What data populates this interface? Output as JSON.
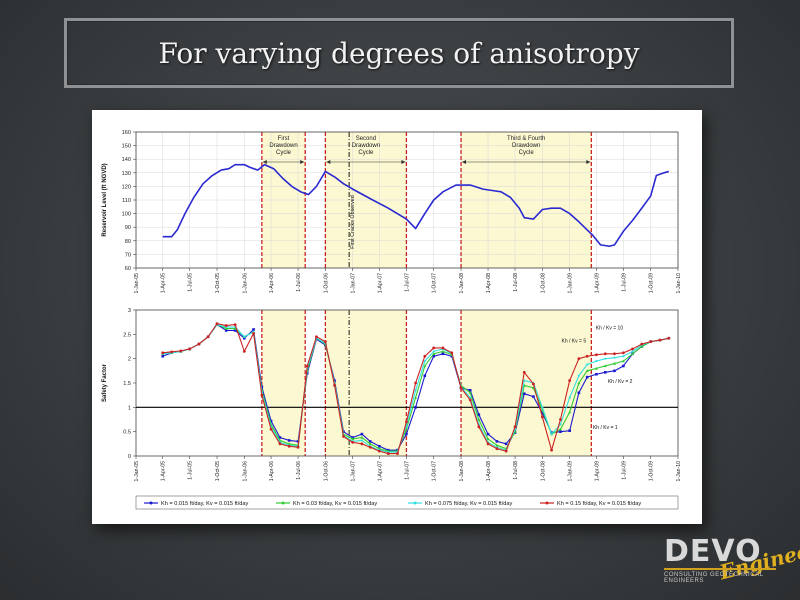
{
  "slide": {
    "title": "For varying degrees of anisotropy"
  },
  "logo": {
    "main": "DEVO",
    "script": "Engineering",
    "subtitle": "CONSULTING GEOTECHNICAL ENGINEERS"
  },
  "colors": {
    "reservoir_line": "#2a2ad0",
    "highlight": "#fbf8d2",
    "dashed_red": "#cc2222",
    "black_ref": "#000000"
  },
  "chart_data": [
    {
      "type": "line",
      "ylabel": "Reservoir Level (ft NGVD)",
      "xlim": [
        "2005-01-01",
        "2010-01-01"
      ],
      "ylim": [
        60,
        160
      ],
      "yticks": [
        60,
        70,
        80,
        90,
        100,
        110,
        120,
        130,
        140,
        150,
        160
      ],
      "xticks": [
        "1-Jan-05",
        "1-Apr-05",
        "1-Jul-05",
        "1-Oct-05",
        "1-Jan-06",
        "1-Apr-06",
        "1-Jul-06",
        "1-Oct-06",
        "1-Jan-07",
        "1-Apr-07",
        "1-Jul-07",
        "1-Oct-07",
        "1-Jan-08",
        "1-Apr-08",
        "1-Jul-08",
        "1-Oct-08",
        "1-Jan-09",
        "1-Apr-09",
        "1-Jul-09",
        "1-Oct-09",
        "1-Jan-10"
      ],
      "grid": true,
      "shaded_periods": [
        {
          "label": "First Drawdown Cycle",
          "start": "2006-03-01",
          "end": "2006-07-25"
        },
        {
          "label": "Second Drawdown Cycle",
          "start": "2006-10-01",
          "end": "2007-07-01"
        },
        {
          "label": "Third & Fourth Drawdown Cycle",
          "start": "2008-01-01",
          "end": "2009-03-15"
        }
      ],
      "vertical_annotation": {
        "label": "First Cracks Observed",
        "date": "2006-12-20"
      },
      "series": [
        {
          "x": [
            "2005-04-01",
            "2005-05-01",
            "2005-05-20",
            "2005-06-15",
            "2005-07-15",
            "2005-08-15",
            "2005-09-15",
            "2005-10-15",
            "2005-11-10",
            "2005-12-01",
            "2006-01-01",
            "2006-01-20",
            "2006-02-15",
            "2006-03-10",
            "2006-04-10",
            "2006-05-10",
            "2006-06-10",
            "2006-07-10",
            "2006-08-05",
            "2006-09-01",
            "2006-10-01",
            "2006-11-01",
            "2006-12-01",
            "2007-01-01",
            "2007-03-01",
            "2007-05-01",
            "2007-07-01",
            "2007-08-01",
            "2007-09-01",
            "2007-10-01",
            "2007-11-01",
            "2007-12-15",
            "2008-02-01",
            "2008-03-15",
            "2008-04-15",
            "2008-05-15",
            "2008-06-15",
            "2008-07-15",
            "2008-08-01",
            "2008-09-01",
            "2008-10-01",
            "2008-11-01",
            "2008-12-01",
            "2009-01-01",
            "2009-02-01",
            "2009-03-01",
            "2009-03-20",
            "2009-04-15",
            "2009-05-15",
            "2009-06-01",
            "2009-07-01",
            "2009-08-01",
            "2009-09-01",
            "2009-10-01",
            "2009-10-20",
            "2009-11-15",
            "2009-12-01"
          ],
          "y": [
            83,
            83,
            88,
            100,
            112,
            122,
            128,
            132,
            133,
            136,
            136,
            134,
            132,
            136,
            133,
            126,
            120,
            116,
            114,
            120,
            131,
            127,
            122,
            118,
            111,
            104,
            96,
            89,
            100,
            110,
            116,
            121,
            121,
            118,
            117,
            116,
            112,
            104,
            97,
            96,
            103,
            104,
            104,
            100,
            94,
            88,
            84,
            77,
            76,
            77,
            87,
            95,
            104,
            113,
            128,
            130,
            131
          ]
        }
      ]
    },
    {
      "type": "line",
      "ylabel": "Safety Factor",
      "xlim": [
        "2005-01-01",
        "2010-01-01"
      ],
      "ylim": [
        0,
        3
      ],
      "yticks": [
        0,
        0.5,
        1,
        1.5,
        2,
        2.5,
        3
      ],
      "xticks": [
        "1-Jan-05",
        "1-Apr-05",
        "1-Jul-05",
        "1-Oct-05",
        "1-Jan-06",
        "1-Apr-06",
        "1-Jul-06",
        "1-Oct-06",
        "1-Jan-07",
        "1-Apr-07",
        "1-Jul-07",
        "1-Oct-07",
        "1-Jan-08",
        "1-Apr-08",
        "1-Jul-08",
        "1-Oct-08",
        "1-Jan-09",
        "1-Apr-09",
        "1-Jul-09",
        "1-Oct-09",
        "1-Jan-10"
      ],
      "grid": false,
      "reference_line": 1,
      "legend_position": "bottom",
      "annotations": [
        {
          "text": "Kh / Kv = 10",
          "x": "2009-05-15",
          "y": 2.6
        },
        {
          "text": "Kh / Kv = 5",
          "x": "2009-01-15",
          "y": 2.33
        },
        {
          "text": "Kh / Kv = 2",
          "x": "2009-06-20",
          "y": 1.5
        },
        {
          "text": "Kh / Kv = 1",
          "x": "2009-05-01",
          "y": 0.55
        }
      ],
      "x": [
        "2005-04-01",
        "2005-05-01",
        "2005-06-01",
        "2005-07-01",
        "2005-08-01",
        "2005-09-01",
        "2005-10-01",
        "2005-11-01",
        "2005-12-01",
        "2006-01-01",
        "2006-02-01",
        "2006-03-01",
        "2006-04-01",
        "2006-05-01",
        "2006-06-01",
        "2006-07-01",
        "2006-08-01",
        "2006-09-01",
        "2006-10-01",
        "2006-11-01",
        "2006-12-01",
        "2007-01-01",
        "2007-02-01",
        "2007-03-01",
        "2007-04-01",
        "2007-05-01",
        "2007-06-01",
        "2007-07-01",
        "2007-08-01",
        "2007-09-01",
        "2007-10-01",
        "2007-11-01",
        "2007-12-01",
        "2008-01-01",
        "2008-02-01",
        "2008-03-01",
        "2008-04-01",
        "2008-05-01",
        "2008-06-01",
        "2008-07-01",
        "2008-08-01",
        "2008-09-01",
        "2008-10-01",
        "2008-11-01",
        "2008-12-01",
        "2009-01-01",
        "2009-02-01",
        "2009-03-01",
        "2009-04-01",
        "2009-05-01",
        "2009-06-01",
        "2009-07-01",
        "2009-08-01",
        "2009-09-01",
        "2009-10-01",
        "2009-11-01",
        "2009-12-01"
      ],
      "series": [
        {
          "name": "Kh = 0.015 ft/day, Kv = 0.015 ft/day",
          "color": "#1a1ad0",
          "y": [
            2.05,
            2.12,
            2.15,
            2.2,
            2.3,
            2.45,
            2.7,
            2.58,
            2.58,
            2.42,
            2.6,
            1.42,
            0.72,
            0.38,
            0.32,
            0.3,
            1.7,
            2.4,
            2.28,
            1.55,
            0.5,
            0.38,
            0.45,
            0.3,
            0.2,
            0.12,
            0.12,
            0.45,
            1.0,
            1.65,
            2.05,
            2.1,
            2.05,
            1.4,
            1.35,
            0.85,
            0.45,
            0.3,
            0.25,
            0.48,
            1.28,
            1.22,
            0.88,
            0.48,
            0.5,
            0.52,
            1.3,
            1.62,
            1.68,
            1.72,
            1.75,
            1.85,
            2.1,
            2.25,
            2.35,
            2.38,
            2.42
          ]
        },
        {
          "name": "Kh = 0.03 ft/day, Kv = 0.015 ft/day",
          "color": "#33cc33",
          "y": [
            2.1,
            2.12,
            2.15,
            2.2,
            2.3,
            2.45,
            2.7,
            2.62,
            2.62,
            2.45,
            2.55,
            1.35,
            0.65,
            0.32,
            0.25,
            0.22,
            1.75,
            2.42,
            2.3,
            1.5,
            0.45,
            0.35,
            0.38,
            0.25,
            0.15,
            0.1,
            0.1,
            0.55,
            1.2,
            1.85,
            2.1,
            2.15,
            2.08,
            1.45,
            1.3,
            0.75,
            0.35,
            0.22,
            0.15,
            0.5,
            1.45,
            1.4,
            0.95,
            0.45,
            0.55,
            0.9,
            1.5,
            1.75,
            1.8,
            1.85,
            1.9,
            1.95,
            2.1,
            2.25,
            2.35,
            2.38,
            2.42
          ]
        },
        {
          "name": "Kh = 0.075 ft/day, Kv = 0.015 ft/day",
          "color": "#33e0e0",
          "y": [
            2.1,
            2.12,
            2.15,
            2.2,
            2.3,
            2.45,
            2.7,
            2.65,
            2.65,
            2.45,
            2.55,
            1.3,
            0.6,
            0.28,
            0.22,
            0.2,
            1.8,
            2.42,
            2.32,
            1.48,
            0.42,
            0.3,
            0.32,
            0.2,
            0.12,
            0.08,
            0.08,
            0.62,
            1.35,
            1.95,
            2.15,
            2.2,
            2.1,
            1.42,
            1.2,
            0.65,
            0.28,
            0.18,
            0.12,
            0.55,
            1.55,
            1.5,
            1.0,
            0.45,
            0.65,
            1.2,
            1.65,
            1.88,
            1.95,
            2.0,
            2.02,
            2.05,
            2.15,
            2.28,
            2.35,
            2.38,
            2.42
          ]
        },
        {
          "name": "Kh = 0.15 ft/day, Kv = 0.015 ft/day",
          "color": "#cc2222",
          "y": [
            2.12,
            2.14,
            2.16,
            2.2,
            2.3,
            2.45,
            2.72,
            2.68,
            2.7,
            2.15,
            2.52,
            1.25,
            0.55,
            0.25,
            0.2,
            0.18,
            1.85,
            2.45,
            2.35,
            1.45,
            0.4,
            0.28,
            0.25,
            0.18,
            0.1,
            0.05,
            0.05,
            0.7,
            1.5,
            2.05,
            2.22,
            2.22,
            2.12,
            1.4,
            1.15,
            0.6,
            0.25,
            0.15,
            0.1,
            0.6,
            1.72,
            1.48,
            0.8,
            0.12,
            0.75,
            1.55,
            2.0,
            2.05,
            2.08,
            2.1,
            2.1,
            2.12,
            2.2,
            2.3,
            2.35,
            2.38,
            2.42
          ]
        }
      ]
    }
  ]
}
